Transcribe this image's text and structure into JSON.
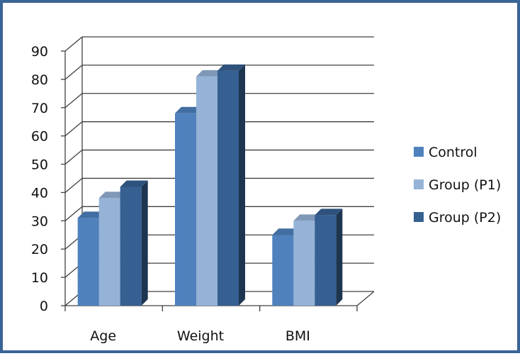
{
  "chart_data": {
    "type": "bar",
    "categories": [
      "Age",
      "Weight",
      "BMI"
    ],
    "series": [
      {
        "name": "Control",
        "values": [
          31,
          68,
          25
        ],
        "color": "#4f81bd"
      },
      {
        "name": "Group (P1)",
        "values": [
          38,
          81,
          30
        ],
        "color": "#95b3d7"
      },
      {
        "name": "Group (P2)",
        "values": [
          42,
          83,
          32
        ],
        "color": "#366092"
      }
    ],
    "y_ticks": [
      "0",
      "10",
      "20",
      "30",
      "40",
      "50",
      "60",
      "70",
      "80",
      "90"
    ],
    "ylim": [
      0,
      90
    ],
    "grid": true,
    "legend": "right",
    "style_3d": true,
    "frame_color": "#3a6496",
    "grid_color": "#404040"
  }
}
